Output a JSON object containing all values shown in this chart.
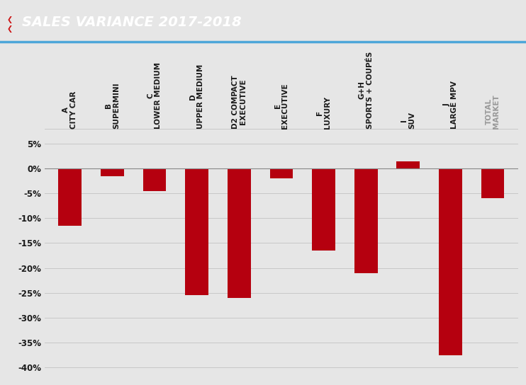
{
  "title": "SALES VARIANCE 2017-2018",
  "background_color": "#e6e6e6",
  "header_bg": "#2e2e2e",
  "header_line_color": "#4da6d9",
  "bar_color": "#b5000f",
  "categories": [
    "A\nCITY CAR",
    "B\nSUPERMINI",
    "C\nLOWER MEDIUM",
    "D\nUPPER MEDIUM",
    "D2 COMPACT\nEXECUTIVE",
    "E\nEXECUTIVE",
    "F\nLUXURY",
    "G+H\nSPORTS + COUPÉS",
    "I\nSUV",
    "J\nLARGE MPV",
    "TOTAL\nMARKET"
  ],
  "label_colors": [
    "#1a1a1a",
    "#1a1a1a",
    "#1a1a1a",
    "#1a1a1a",
    "#1a1a1a",
    "#1a1a1a",
    "#1a1a1a",
    "#1a1a1a",
    "#1a1a1a",
    "#1a1a1a",
    "#999999"
  ],
  "values": [
    -11.5,
    -1.5,
    -4.5,
    -25.5,
    -26.0,
    -2.0,
    -16.5,
    -21.0,
    1.5,
    -37.5,
    -6.0
  ],
  "ylim": [
    -42,
    7
  ],
  "yticks": [
    5,
    0,
    -5,
    -10,
    -15,
    -20,
    -25,
    -30,
    -35,
    -40
  ],
  "grid_color": "#c8c8c8",
  "zero_line_color": "#888888",
  "figsize": [
    7.42,
    5.44
  ],
  "dpi": 100
}
